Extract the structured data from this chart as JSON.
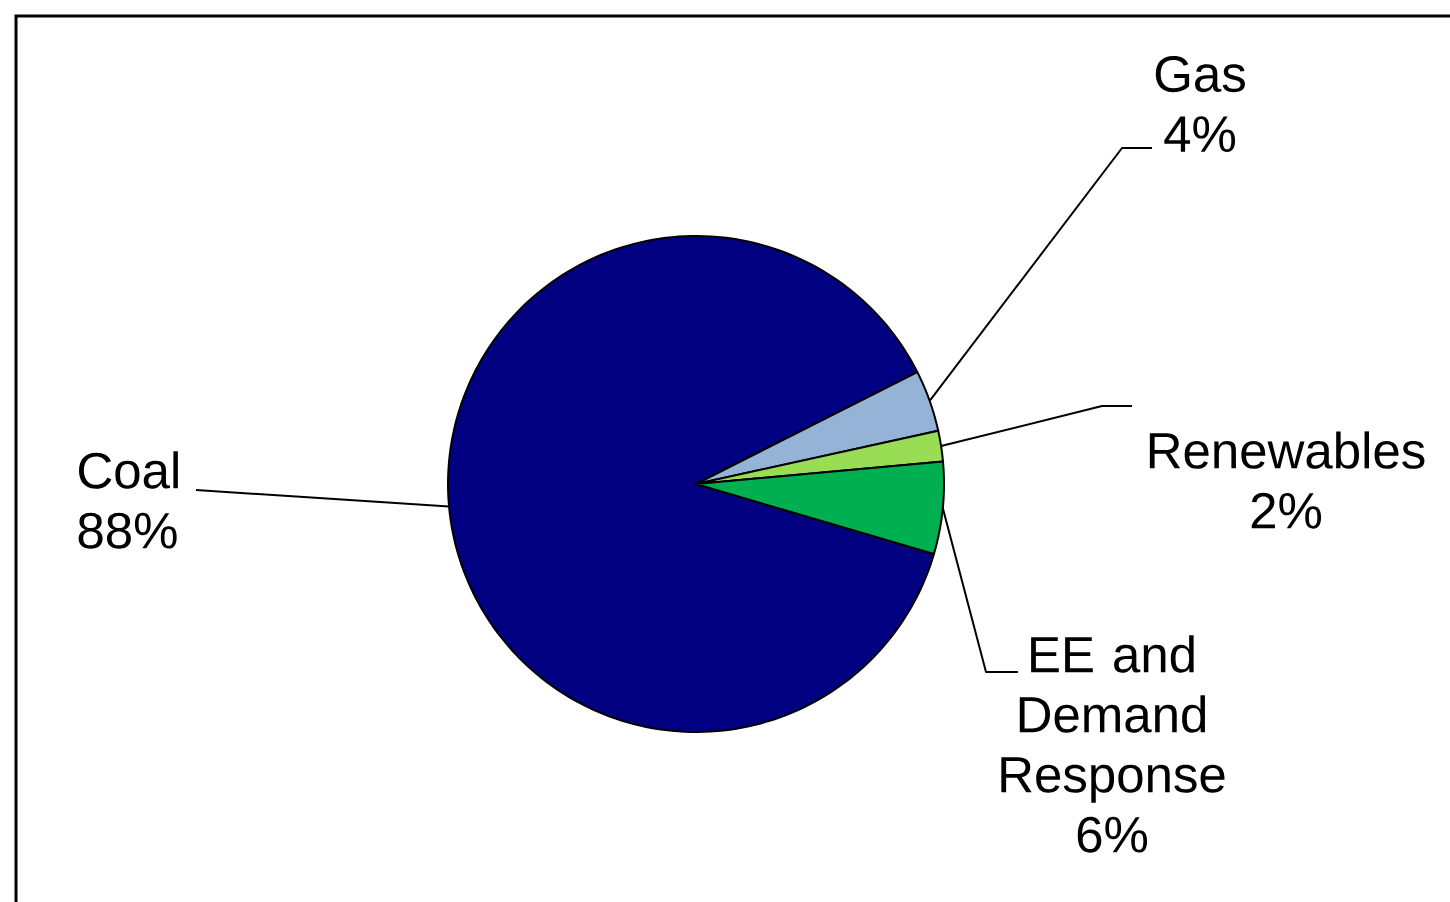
{
  "chart_data": {
    "type": "pie",
    "categories": [
      "Coal",
      "Gas",
      "Renewables",
      "EE and Demand Response"
    ],
    "values": [
      88,
      4,
      2,
      6
    ],
    "value_labels": [
      "88%",
      "4%",
      "2%",
      "6%"
    ],
    "colors": [
      "#000080",
      "#95b3d7",
      "#99dd55",
      "#00b050"
    ]
  }
}
